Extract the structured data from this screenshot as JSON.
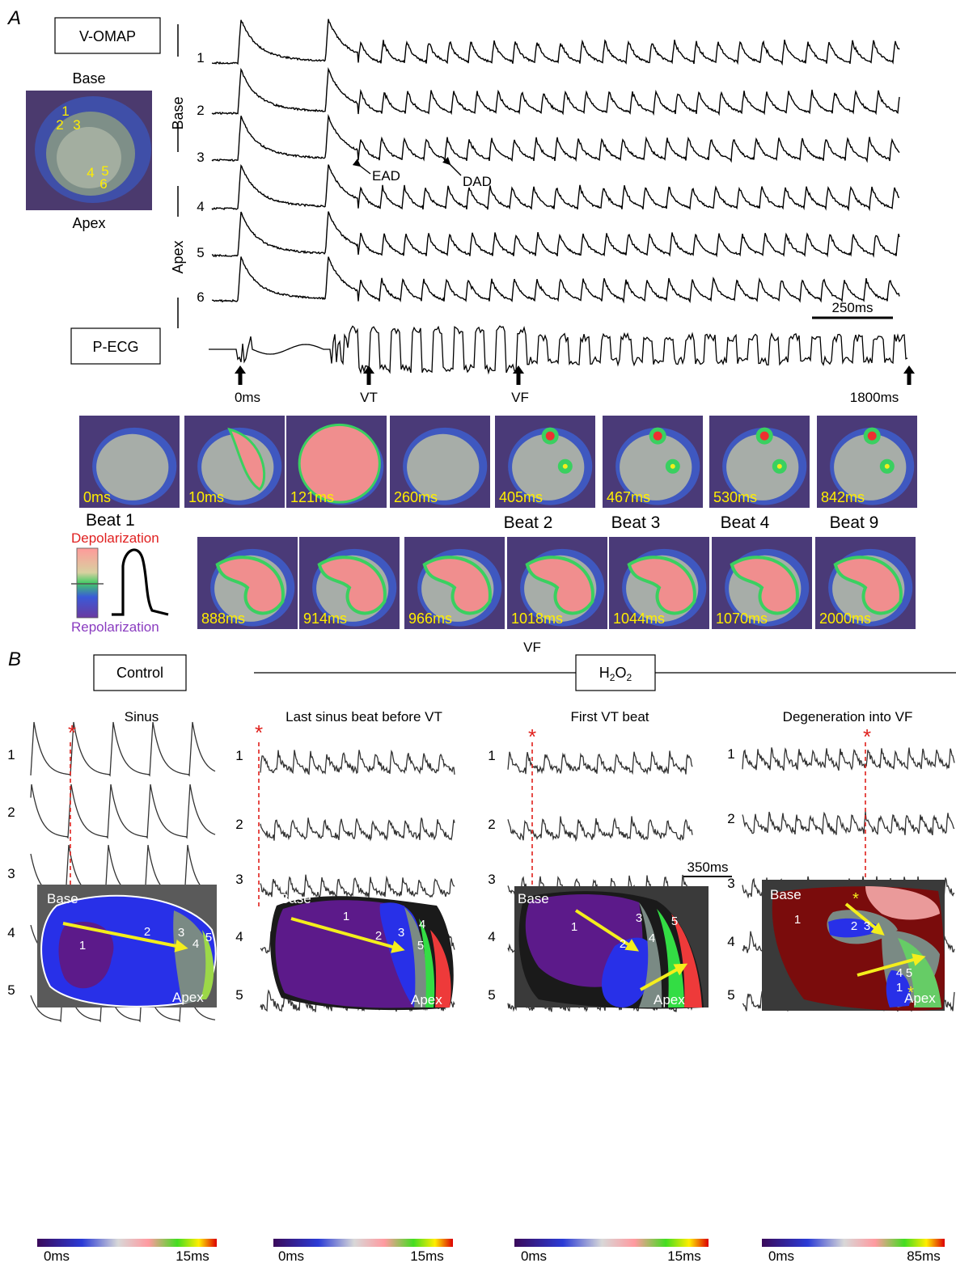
{
  "panel_a": {
    "panel_label": "A",
    "voltage_box_label": "V-OMAP",
    "ecg_box_label": "P-ECG",
    "map_labels": {
      "top": "Base",
      "bottom": "Apex"
    },
    "map_site_numbers": [
      "1",
      "2",
      "3",
      "4",
      "5",
      "6"
    ],
    "trace_numbers": [
      "1",
      "2",
      "3",
      "4",
      "5",
      "6"
    ],
    "region_labels": [
      "Base",
      "Apex"
    ],
    "annotations": [
      "EAD",
      "DAD"
    ],
    "scale_bar": "250ms",
    "ecg_markers": [
      "0ms",
      "VT",
      "VF",
      "1800ms"
    ],
    "frames_row1": [
      "0ms",
      "10ms",
      "121ms",
      "260ms",
      "405ms",
      "467ms",
      "530ms",
      "842ms"
    ],
    "beat_labels": [
      "Beat 1",
      "Beat 2",
      "Beat 3",
      "Beat 4",
      "Beat 9"
    ],
    "legend": {
      "top": "Depolarization",
      "bottom": "Repolarization"
    },
    "frames_row2": [
      "888ms",
      "914ms",
      "966ms",
      "1018ms",
      "1044ms",
      "1070ms",
      "2000ms"
    ],
    "vf_label": "VF",
    "colors": {
      "depolarization": "#ee1c1c",
      "repolarization": "#7a2ea8",
      "time_text": "#ffee00"
    }
  },
  "panel_b": {
    "panel_label": "B",
    "control_box_label": "Control",
    "treatment_box": {
      "main": "H",
      "sub1": "2",
      "mid": "O",
      "sub2": "2"
    },
    "columns": [
      {
        "title": "Sinus",
        "scale_end": "15ms"
      },
      {
        "title": "Last sinus beat before VT",
        "scale_end": "15ms"
      },
      {
        "title": "First VT beat",
        "scale_end": "15ms"
      },
      {
        "title": "Degeneration into VF",
        "scale_end": "85ms"
      }
    ],
    "trace_numbers": [
      "1",
      "2",
      "3",
      "4",
      "5"
    ],
    "marker": "*",
    "scale_bar": "350ms",
    "map_labels": {
      "top": "Base",
      "bottom": "Apex"
    },
    "scale_start": "0ms",
    "map_numbers": [
      [
        "1",
        "2",
        "3",
        "4",
        "5"
      ],
      [
        "1",
        "2",
        "3",
        "4",
        "5"
      ],
      [
        "1",
        "2",
        "3",
        "4",
        "5"
      ],
      [
        "1",
        "2",
        "3",
        "4",
        "5",
        "1"
      ]
    ],
    "colors": {
      "marker": "#e0201c",
      "arrow": "#f4ee1c"
    }
  }
}
